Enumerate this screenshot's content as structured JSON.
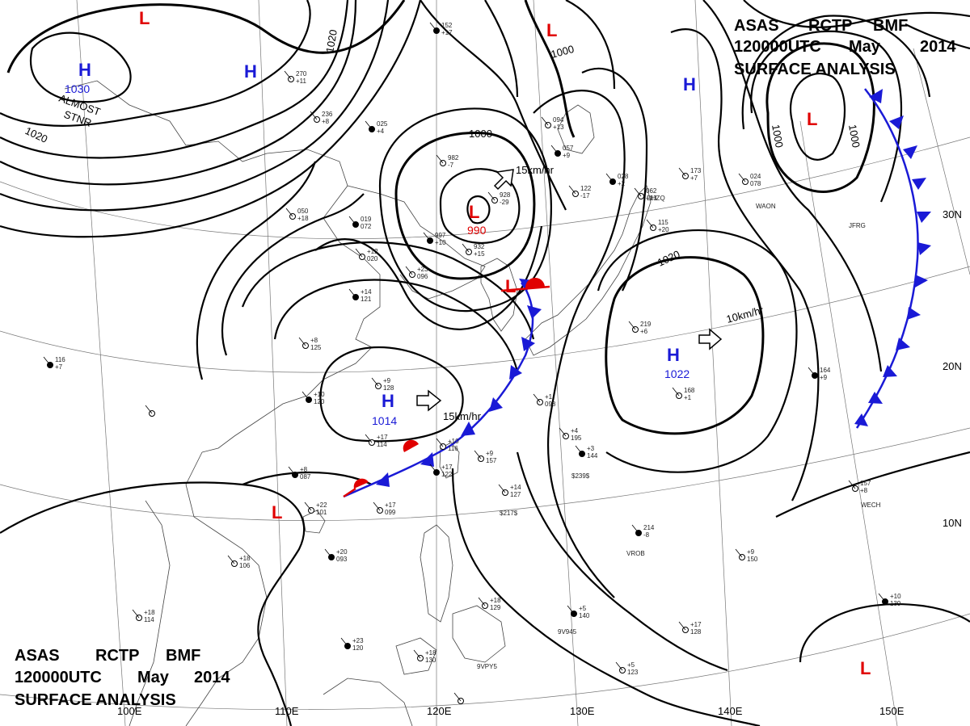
{
  "header_top": {
    "line1": [
      "ASAS",
      "RCTP",
      "BMF"
    ],
    "line2": [
      "120000UTC",
      "May",
      "2014"
    ],
    "line3": "SURFACE  ANALYSIS"
  },
  "header_bottom": {
    "line1": [
      "ASAS",
      "RCTP",
      "BMF"
    ],
    "line2": [
      "120000UTC",
      "May",
      "2014"
    ],
    "line3": "SURFACE  ANALYSIS"
  },
  "longitude_labels": [
    "100E",
    "110E",
    "120E",
    "130E",
    "140E",
    "150E"
  ],
  "latitude_labels": [
    "30N",
    "20N",
    "10N"
  ],
  "pressure_centers": [
    {
      "type": "H",
      "value": "1030",
      "color": "#1a1ad6"
    },
    {
      "type": "H",
      "value": "",
      "color": "#1a1ad6"
    },
    {
      "type": "H",
      "value": "",
      "color": "#1a1ad6"
    },
    {
      "type": "H",
      "value": "1014",
      "color": "#1a1ad6"
    },
    {
      "type": "H",
      "value": "1022",
      "color": "#1a1ad6"
    },
    {
      "type": "L",
      "value": "990",
      "color": "#e00000"
    },
    {
      "type": "L",
      "value": "",
      "color": "#e00000"
    },
    {
      "type": "L",
      "value": "",
      "color": "#e00000"
    },
    {
      "type": "L",
      "value": "",
      "color": "#e00000"
    },
    {
      "type": "L",
      "value": "",
      "color": "#e00000"
    },
    {
      "type": "L",
      "value": "",
      "color": "#e00000"
    },
    {
      "type": "L",
      "value": "",
      "color": "#e00000"
    }
  ],
  "isobar_labels": [
    "1020",
    "1020",
    "1000",
    "1000",
    "1000",
    "1000",
    "1020"
  ],
  "motion_labels": [
    "15km/hr",
    "15km/hr",
    "10km/hr"
  ],
  "annotations": [
    "ALMOST",
    "STNR"
  ],
  "station_ids": [
    "DHZQ",
    "WAON",
    "JFRG",
    "WECH",
    "VROB",
    "9V945",
    "9VPY5",
    "$239$",
    "$217$"
  ],
  "station_obs": [
    "152",
    "+17",
    "270",
    "+11",
    "236",
    "+8",
    "025",
    "+4",
    "982",
    "-7",
    "928",
    "-29",
    "997",
    "+10",
    "932",
    "+15",
    "050",
    "+18",
    "019",
    "072",
    "+12",
    "020",
    "+23",
    "096",
    "+14",
    "121",
    "+8",
    "125",
    "+9",
    "128",
    "+10",
    "120",
    "+17",
    "114",
    "+10",
    "116",
    "+17",
    "122",
    "+9",
    "157",
    "+4",
    "195",
    "+3",
    "144",
    "+14",
    "127",
    "+1",
    "098",
    "+8",
    "087",
    "+22",
    "101",
    "+17",
    "099",
    "+20",
    "093",
    "+18",
    "106",
    "+18",
    "114",
    "+23",
    "120",
    "+18",
    "130",
    "+18",
    "129",
    "+5",
    "140",
    "+17",
    "128",
    "+5",
    "123",
    "+10",
    "139",
    "+9",
    "150",
    "157",
    "+8",
    "214",
    "-8",
    "219",
    "+6",
    "168",
    "+1",
    "164",
    "+9",
    "173",
    "+7",
    "062",
    "+13",
    "057",
    "+9",
    "094",
    "+13",
    "122",
    "-17",
    "028",
    "+2",
    "115",
    "+20",
    "024",
    "078",
    "116",
    "+7"
  ],
  "colors": {
    "high": "#1a1ad6",
    "low": "#e00000",
    "cold_front": "#1a1ad6",
    "warm_front": "#e00000",
    "isobar": "#000000"
  }
}
